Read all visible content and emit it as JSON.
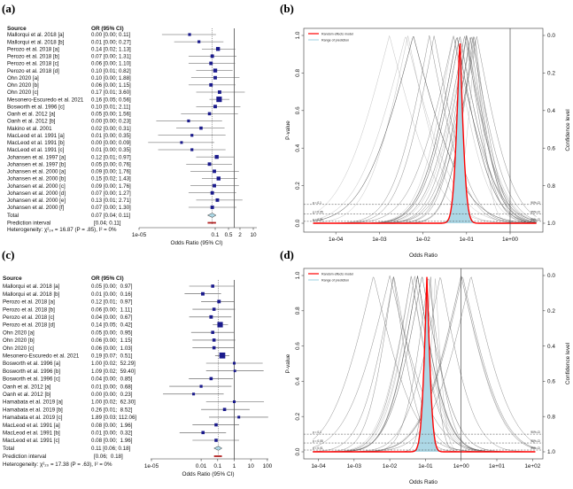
{
  "panels": {
    "a": "(a)",
    "b": "(b)",
    "c": "(c)",
    "d": "(d)"
  },
  "chart_data": [
    {
      "panel": "(a)",
      "type": "forest",
      "x_scale": "log",
      "header": {
        "source": "Source",
        "or": "OR (95% CI)"
      },
      "studies": [
        {
          "name": "Mallorqui et al. 2018 [a]",
          "ci_text": "0.00 [0.00; 0.11]",
          "or": 0.0045,
          "lower": 0.00016,
          "upper": 0.11,
          "weight": 1
        },
        {
          "name": "Mallorqui et al. 2018 [b]",
          "ci_text": "0.01 [0.00; 0.27]",
          "or": 0.014,
          "lower": 0.0007,
          "upper": 0.27,
          "weight": 1
        },
        {
          "name": "Perozo et al. 2018 [a]",
          "ci_text": "0.14 [0.02; 1.13]",
          "or": 0.14,
          "lower": 0.02,
          "upper": 1.13,
          "weight": 3
        },
        {
          "name": "Perozo et al. 2018 [b]",
          "ci_text": "0.07 [0.00; 1.31]",
          "or": 0.07,
          "lower": 0.004,
          "upper": 1.31,
          "weight": 2
        },
        {
          "name": "Perozo et al. 2018 [c]",
          "ci_text": "0.06 [0.00; 1.10]",
          "or": 0.06,
          "lower": 0.004,
          "upper": 1.1,
          "weight": 2
        },
        {
          "name": "Perozo et al. 2018 [d]",
          "ci_text": "0.10 [0.01; 0.82]",
          "or": 0.1,
          "lower": 0.01,
          "upper": 0.82,
          "weight": 3
        },
        {
          "name": "Ohn 2020 [a]",
          "ci_text": "0.10 [0.00; 1.88]",
          "or": 0.1,
          "lower": 0.0055,
          "upper": 1.88,
          "weight": 2
        },
        {
          "name": "Ohn 2020 [b]",
          "ci_text": "0.06 [0.00; 1.15]",
          "or": 0.06,
          "lower": 0.004,
          "upper": 1.15,
          "weight": 2
        },
        {
          "name": "Ohn 2020 [c]",
          "ci_text": "0.17 [0.01; 3.60]",
          "or": 0.17,
          "lower": 0.01,
          "upper": 3.6,
          "weight": 2
        },
        {
          "name": "Mesonero-Escuredo et al. 2021",
          "ci_text": "0.16 [0.05; 0.56]",
          "or": 0.16,
          "lower": 0.05,
          "upper": 0.56,
          "weight": 8
        },
        {
          "name": "Bosworth et al. 1996 [c]",
          "ci_text": "0.10 [0.01; 2.11]",
          "or": 0.1,
          "lower": 0.01,
          "upper": 2.11,
          "weight": 2
        },
        {
          "name": "Oanh et al. 2012 [a]",
          "ci_text": "0.05 [0.00; 1.56]",
          "or": 0.05,
          "lower": 0.0016,
          "upper": 1.56,
          "weight": 1.5
        },
        {
          "name": "Oanh et al. 2012 [b]",
          "ci_text": "0.00 [0.00; 0.23]",
          "or": 0.004,
          "lower": 8e-05,
          "upper": 0.23,
          "weight": 1
        },
        {
          "name": "Makino et al. 2001",
          "ci_text": "0.02 [0.00; 0.31]",
          "or": 0.018,
          "lower": 0.0009,
          "upper": 0.31,
          "weight": 1.5
        },
        {
          "name": "MacLeod et al. 1991 [a]",
          "ci_text": "0.01 [0.00; 0.35]",
          "or": 0.006,
          "lower": 0.0001,
          "upper": 0.35,
          "weight": 1
        },
        {
          "name": "MacLeod et al. 1991 [b]",
          "ci_text": "0.00 [0.00; 0.09]",
          "or": 0.0017,
          "lower": 3e-05,
          "upper": 0.09,
          "weight": 0.8
        },
        {
          "name": "MacLeod et al. 1991 [c]",
          "ci_text": "0.01 [0.00; 0.35]",
          "or": 0.006,
          "lower": 0.0001,
          "upper": 0.35,
          "weight": 1
        },
        {
          "name": "Johansen et al. 1997 [a]",
          "ci_text": "0.12 [0.01; 0.97]",
          "or": 0.12,
          "lower": 0.01,
          "upper": 0.97,
          "weight": 3
        },
        {
          "name": "Johansen et al. 1997 [b]",
          "ci_text": "0.05 [0.00; 0.76]",
          "or": 0.05,
          "lower": 0.003,
          "upper": 0.76,
          "weight": 2
        },
        {
          "name": "Johansen et al. 2000 [a]",
          "ci_text": "0.09 [0.00; 1.76]",
          "or": 0.09,
          "lower": 0.005,
          "upper": 1.76,
          "weight": 2
        },
        {
          "name": "Johansen et al. 2000 [b]",
          "ci_text": "0.15 [0.02; 1.43]",
          "or": 0.15,
          "lower": 0.02,
          "upper": 1.43,
          "weight": 3
        },
        {
          "name": "Johansen et al. 2000 [c]",
          "ci_text": "0.09 [0.00; 1.76]",
          "or": 0.09,
          "lower": 0.005,
          "upper": 1.76,
          "weight": 2
        },
        {
          "name": "Johansen et al. 2000 [d]",
          "ci_text": "0.07 [0.00; 1.27]",
          "or": 0.07,
          "lower": 0.004,
          "upper": 1.27,
          "weight": 2
        },
        {
          "name": "Johansen et al. 2000 [e]",
          "ci_text": "0.13 [0.01; 2.71]",
          "or": 0.13,
          "lower": 0.01,
          "upper": 2.71,
          "weight": 2
        },
        {
          "name": "Johansen et al. 2000 [f]",
          "ci_text": "0.07 [0.00; 1.30]",
          "or": 0.07,
          "lower": 0.004,
          "upper": 1.3,
          "weight": 2
        }
      ],
      "total": {
        "label": "Total",
        "ci_text": "0.07 [0.04; 0.11]",
        "or": 0.07,
        "lower": 0.04,
        "upper": 0.11
      },
      "prediction": {
        "label": "Prediction interval",
        "ci_text": "[0.04; 0.11]",
        "lower": 0.04,
        "upper": 0.11
      },
      "heterogeneity": "Heterogeneity: χ²₂₄ = 16.87 (P = .85), I² = 0%",
      "xlabel": "Odds Ratio (95% CI)",
      "xticks": [
        {
          "label": "1e-05",
          "value": 1e-05
        },
        {
          "label": "0.1",
          "value": 0.1
        },
        {
          "label": "0.5",
          "value": 0.5
        },
        {
          "label": "2",
          "value": 2
        },
        {
          "label": "10",
          "value": 10
        }
      ],
      "reference_line": 1,
      "colors": {
        "square": "#1a1a8c",
        "diamond": "#add8e6",
        "prediction": "#b22222"
      }
    },
    {
      "panel": "(b)",
      "type": "line",
      "x_scale": "log",
      "source_forest": "(a)",
      "xlabel": "Odds Ratio",
      "ylabel": "P-value",
      "y2label": "Confidence level",
      "xticks": [
        {
          "label": "1e-04",
          "value": 0.0001
        },
        {
          "label": "1e-03",
          "value": 0.001
        },
        {
          "label": "1e-02",
          "value": 0.01
        },
        {
          "label": "1e-01",
          "value": 0.1
        },
        {
          "label": "1e+00",
          "value": 1
        }
      ],
      "xlim": [
        3e-05,
        4
      ],
      "yticks": [
        "0.0",
        "0.2",
        "0.4",
        "0.6",
        "0.8",
        "1.0"
      ],
      "y2ticks": [
        "1.0",
        "0.8",
        "0.6",
        "0.4",
        "0.2",
        "0.0"
      ],
      "ylim": [
        0,
        1
      ],
      "legend": [
        "Random effects model",
        "Range of prediction"
      ],
      "legend_position": "top-left",
      "ref_lines": [
        {
          "p": 0.1,
          "left": "p = 0.1",
          "right": "90%-CI"
        },
        {
          "p": 0.05,
          "left": "p = 0.05",
          "right": "95%-CI"
        },
        {
          "p": 0.01,
          "left": "p = 0.01",
          "right": "99%-CI"
        }
      ],
      "pooled": {
        "or": 0.07,
        "lower": 0.04,
        "upper": 0.11
      },
      "colors": {
        "pooled": "#ff0000",
        "prediction": "#add8e6",
        "study": "#555555"
      }
    },
    {
      "panel": "(c)",
      "type": "forest",
      "x_scale": "log",
      "header": {
        "source": "Source",
        "or": "OR (95% CI)"
      },
      "studies": [
        {
          "name": "Mallorqui et al. 2018 [a]",
          "ci_text": "0.05 [0.00;  0.97]",
          "or": 0.05,
          "lower": 0.0019,
          "upper": 0.97,
          "weight": 1.5
        },
        {
          "name": "Mallorqui et al. 2018 [b]",
          "ci_text": "0.01 [0.00;  0.16]",
          "or": 0.0126,
          "lower": 0.001,
          "upper": 0.16,
          "weight": 2
        },
        {
          "name": "Perozo et al. 2018 [a]",
          "ci_text": "0.12 [0.01;  0.97]",
          "or": 0.12,
          "lower": 0.01,
          "upper": 0.97,
          "weight": 2
        },
        {
          "name": "Perozo et al. 2018 [b]",
          "ci_text": "0.06 [0.00;  1.11]",
          "or": 0.06,
          "lower": 0.003,
          "upper": 1.11,
          "weight": 1.5
        },
        {
          "name": "Perozo et al. 2018 [c]",
          "ci_text": "0.04 [0.00;  0.67]",
          "or": 0.04,
          "lower": 0.0019,
          "upper": 0.67,
          "weight": 2
        },
        {
          "name": "Perozo et al. 2018 [d]",
          "ci_text": "0.14 [0.05;  0.42]",
          "or": 0.14,
          "lower": 0.05,
          "upper": 0.42,
          "weight": 8
        },
        {
          "name": "Ohn 2020 [a]",
          "ci_text": "0.05 [0.00;  0.95]",
          "or": 0.05,
          "lower": 0.0025,
          "upper": 0.95,
          "weight": 1.5
        },
        {
          "name": "Ohn 2020 [b]",
          "ci_text": "0.06 [0.00;  1.15]",
          "or": 0.06,
          "lower": 0.003,
          "upper": 1.15,
          "weight": 1.5
        },
        {
          "name": "Ohn 2020 [c]",
          "ci_text": "0.06 [0.00;  1.03]",
          "or": 0.06,
          "lower": 0.003,
          "upper": 1.03,
          "weight": 1.5
        },
        {
          "name": "Mesonero-Escuredo et al. 2021",
          "ci_text": "0.19 [0.07;  0.51]",
          "or": 0.19,
          "lower": 0.07,
          "upper": 0.51,
          "weight": 10
        },
        {
          "name": "Bosworth et al. 1996 [a]",
          "ci_text": "1.00 [0.02;  52.29]",
          "or": 1.0,
          "lower": 0.02,
          "upper": 52.29,
          "weight": 0.8
        },
        {
          "name": "Bosworth et al. 1996 [b]",
          "ci_text": "1.09 [0.02;  59.40]",
          "or": 1.09,
          "lower": 0.02,
          "upper": 59.4,
          "weight": 0.6
        },
        {
          "name": "Bosworth et al. 1996 [c]",
          "ci_text": "0.04 [0.00;  0.85]",
          "or": 0.04,
          "lower": 0.0018,
          "upper": 0.85,
          "weight": 1.5
        },
        {
          "name": "Oanh et al. 2012 [a]",
          "ci_text": "0.01 [0.00;  0.68]",
          "or": 0.01,
          "lower": 0.00012,
          "upper": 0.68,
          "weight": 1
        },
        {
          "name": "Oanh et al. 2012 [b]",
          "ci_text": "0.00 [0.00;  0.23]",
          "or": 0.0035,
          "lower": 5e-05,
          "upper": 0.23,
          "weight": 0.8
        },
        {
          "name": "Hamabata et al. 2019 [a]",
          "ci_text": "1.00 [0.02;  62.30]",
          "or": 1.0,
          "lower": 0.02,
          "upper": 62.3,
          "weight": 0.8
        },
        {
          "name": "Hamabata et al. 2019 [b]",
          "ci_text": "0.26 [0.01;  8.52]",
          "or": 0.26,
          "lower": 0.01,
          "upper": 8.52,
          "weight": 1.5
        },
        {
          "name": "Hamabata et al. 2019 [c]",
          "ci_text": "1.89 [0.03; 112.06]",
          "or": 1.89,
          "lower": 0.03,
          "upper": 112.06,
          "weight": 0.8
        },
        {
          "name": "MacLeod et al. 1991 [a]",
          "ci_text": "0.08 [0.00;  1.96]",
          "or": 0.08,
          "lower": 0.003,
          "upper": 1.96,
          "weight": 1.5
        },
        {
          "name": "MacLeod et al. 1991 [b]",
          "ci_text": "0.01 [0.00;  0.32]",
          "or": 0.013,
          "lower": 0.0005,
          "upper": 0.32,
          "weight": 1.5
        },
        {
          "name": "MacLeod et al. 1991 [c]",
          "ci_text": "0.08 [0.00;  1.96]",
          "or": 0.08,
          "lower": 0.003,
          "upper": 1.96,
          "weight": 1.5
        }
      ],
      "total": {
        "label": "Total",
        "ci_text": "0.11 [0.06; 0.18]",
        "or": 0.11,
        "lower": 0.06,
        "upper": 0.18
      },
      "prediction": {
        "label": "Prediction interval",
        "ci_text": "[0.06;  0.18]",
        "lower": 0.06,
        "upper": 0.18
      },
      "heterogeneity": "Heterogeneity: χ²₂₀ = 17.38 (P = .63), I² = 0%",
      "xlabel": "Odds Ratio (95% CI)",
      "xticks": [
        {
          "label": "1e-05",
          "value": 1e-05
        },
        {
          "label": "0.01",
          "value": 0.01
        },
        {
          "label": "0.1",
          "value": 0.1
        },
        {
          "label": "1",
          "value": 1
        },
        {
          "label": "10",
          "value": 10
        },
        {
          "label": "100",
          "value": 100
        }
      ],
      "reference_line": 1,
      "colors": {
        "square": "#1a1a8c",
        "diamond": "#add8e6",
        "prediction": "#b22222"
      }
    },
    {
      "panel": "(d)",
      "type": "line",
      "x_scale": "log",
      "source_forest": "(c)",
      "xlabel": "Odds Ratio",
      "ylabel": "P-value",
      "y2label": "Confidence level",
      "xticks": [
        {
          "label": "1e-04",
          "value": 0.0001
        },
        {
          "label": "1e-03",
          "value": 0.001
        },
        {
          "label": "1e-02",
          "value": 0.01
        },
        {
          "label": "1e-01",
          "value": 0.1
        },
        {
          "label": "1e+00",
          "value": 1
        },
        {
          "label": "1e+01",
          "value": 10
        },
        {
          "label": "1e+02",
          "value": 100
        }
      ],
      "xlim": [
        7e-05,
        120
      ],
      "yticks": [
        "0.0",
        "0.2",
        "0.4",
        "0.6",
        "0.8",
        "1.0"
      ],
      "y2ticks": [
        "1.0",
        "0.8",
        "0.6",
        "0.4",
        "0.2",
        "0.0"
      ],
      "ylim": [
        0,
        1
      ],
      "legend": [
        "Random effects model",
        "Range of prediction"
      ],
      "legend_position": "top-left",
      "ref_lines": [
        {
          "p": 0.1,
          "left": "p = 0.1",
          "right": "90%-CI"
        },
        {
          "p": 0.05,
          "left": "p = 0.05",
          "right": "95%-CI"
        },
        {
          "p": 0.01,
          "left": "p = 0.01",
          "right": "99%-CI"
        }
      ],
      "pooled": {
        "or": 0.11,
        "lower": 0.06,
        "upper": 0.18
      },
      "colors": {
        "pooled": "#ff0000",
        "prediction": "#add8e6",
        "study": "#555555"
      }
    }
  ]
}
